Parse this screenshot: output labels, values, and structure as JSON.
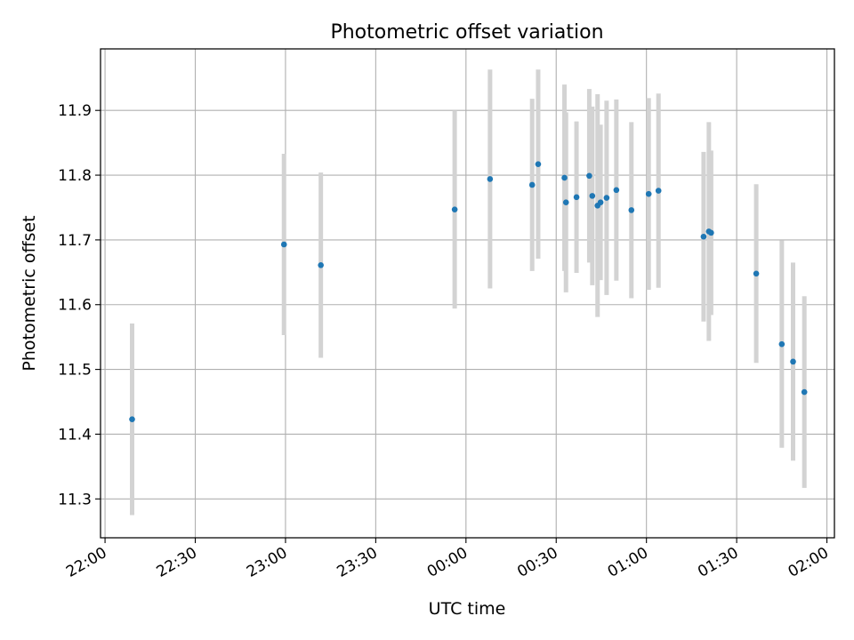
{
  "chart_data": {
    "type": "scatter",
    "title": "Photometric offset variation",
    "xlabel": "UTC time",
    "ylabel": "Photometric offset",
    "x_ticks": [
      "22:00",
      "22:30",
      "23:00",
      "23:30",
      "00:00",
      "00:30",
      "01:00",
      "01:30",
      "02:00"
    ],
    "y_ticks": [
      "11.3",
      "11.4",
      "11.5",
      "11.6",
      "11.7",
      "11.8",
      "11.9"
    ],
    "x_axis_type": "time",
    "x_range": [
      "21:58:30",
      "02:02:30"
    ],
    "ylim": [
      11.24,
      11.995
    ],
    "grid": true,
    "colors": {
      "point": "#1f77b4",
      "errorbar": "#d3d3d3",
      "grid": "#b0b0b0"
    },
    "points": [
      {
        "time": "22:09:00",
        "y": 11.423,
        "err": 0.148
      },
      {
        "time": "22:59:30",
        "y": 11.693,
        "err": 0.14
      },
      {
        "time": "23:11:45",
        "y": 11.661,
        "err": 0.143
      },
      {
        "time": "00:46:45",
        "y": 11.765,
        "err": 0.15
      },
      {
        "time": "23:56:15",
        "y": 11.747,
        "err": 0.153
      },
      {
        "time": "00:08:00",
        "y": 11.794,
        "err": 0.169
      },
      {
        "time": "00:22:00",
        "y": 11.785,
        "err": 0.133
      },
      {
        "time": "00:24:00",
        "y": 11.817,
        "err": 0.146
      },
      {
        "time": "00:32:45",
        "y": 11.796,
        "err": 0.144
      },
      {
        "time": "00:33:15",
        "y": 11.758,
        "err": 0.139
      },
      {
        "time": "00:36:45",
        "y": 11.766,
        "err": 0.117
      },
      {
        "time": "00:41:00",
        "y": 11.799,
        "err": 0.134
      },
      {
        "time": "00:42:00",
        "y": 11.768,
        "err": 0.138
      },
      {
        "time": "00:43:45",
        "y": 11.753,
        "err": 0.172
      },
      {
        "time": "00:44:45",
        "y": 11.758,
        "err": 0.12
      },
      {
        "time": "00:50:00",
        "y": 11.777,
        "err": 0.14
      },
      {
        "time": "00:55:00",
        "y": 11.746,
        "err": 0.136
      },
      {
        "time": "01:00:45",
        "y": 11.771,
        "err": 0.148
      },
      {
        "time": "01:04:00",
        "y": 11.776,
        "err": 0.15
      },
      {
        "time": "01:19:00",
        "y": 11.705,
        "err": 0.131
      },
      {
        "time": "01:20:45",
        "y": 11.713,
        "err": 0.169
      },
      {
        "time": "01:21:30",
        "y": 11.711,
        "err": 0.127
      },
      {
        "time": "01:36:30",
        "y": 11.648,
        "err": 0.138
      },
      {
        "time": "01:45:00",
        "y": 11.539,
        "err": 0.16
      },
      {
        "time": "01:48:45",
        "y": 11.512,
        "err": 0.153
      },
      {
        "time": "01:52:30",
        "y": 11.465,
        "err": 0.148
      }
    ]
  }
}
